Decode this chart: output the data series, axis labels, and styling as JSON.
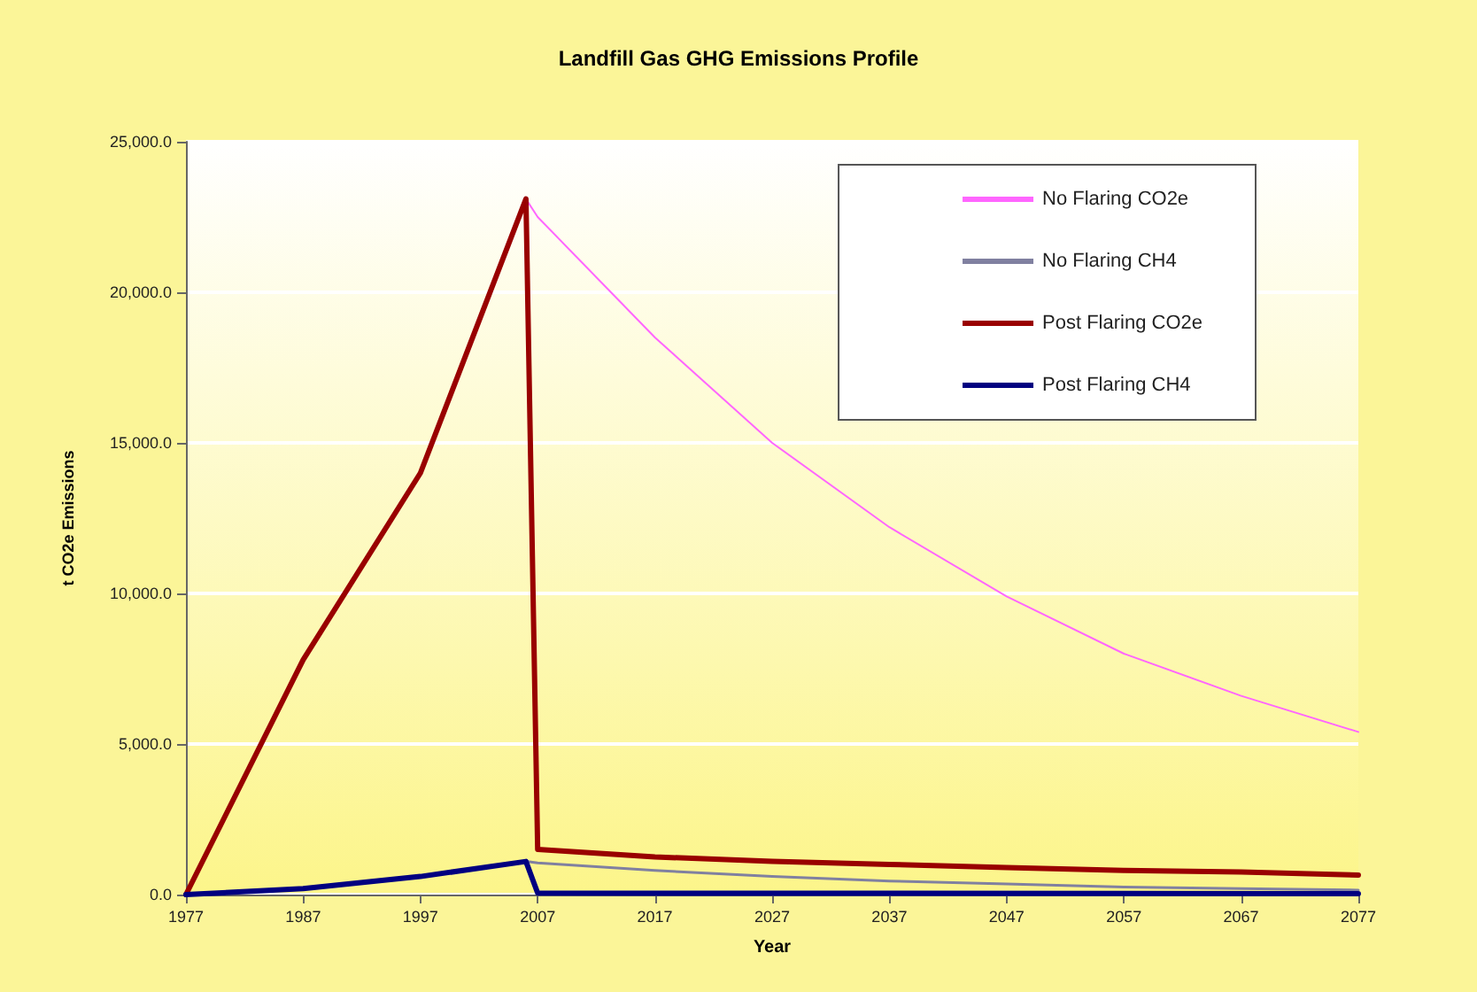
{
  "chart_data": {
    "type": "line",
    "title": "Landfill Gas GHG Emissions Profile",
    "xlabel": "Year",
    "ylabel": "t CO2e Emissions",
    "xlim": [
      1977,
      2077
    ],
    "xticks": [
      1977,
      1987,
      1997,
      2007,
      2017,
      2027,
      2037,
      2047,
      2057,
      2067,
      2077
    ],
    "ylim": [
      0,
      25000
    ],
    "yticks": [
      {
        "value": 0,
        "label": "0.0"
      },
      {
        "value": 5000,
        "label": "5,000.0"
      },
      {
        "value": 10000,
        "label": "10,000.0"
      },
      {
        "value": 15000,
        "label": "15,000.0"
      },
      {
        "value": 20000,
        "label": "20,000.0"
      },
      {
        "value": 25000,
        "label": "25,000.0"
      }
    ],
    "grid": "y",
    "legend": "top right",
    "marker": "none",
    "line_style": "solid",
    "series": [
      {
        "name": "No Flaring CO2e",
        "color": "#ff66ff",
        "x": [
          2006,
          2007,
          2017,
          2027,
          2037,
          2047,
          2057,
          2067,
          2077
        ],
        "values": [
          23100,
          22500,
          18500,
          15000,
          12200,
          9900,
          8000,
          6600,
          5400
        ]
      },
      {
        "name": "No Flaring CH4",
        "color": "#8080a0",
        "x": [
          2006,
          2007,
          2017,
          2027,
          2037,
          2047,
          2057,
          2067,
          2077
        ],
        "values": [
          1100,
          1050,
          800,
          600,
          450,
          350,
          250,
          200,
          150
        ]
      },
      {
        "name": "Post Flaring CO2e",
        "color": "#990000",
        "x": [
          1977,
          1987,
          1997,
          2006,
          2007,
          2017,
          2027,
          2037,
          2047,
          2057,
          2067,
          2077
        ],
        "values": [
          0,
          7800,
          14000,
          23100,
          1500,
          1250,
          1100,
          1000,
          900,
          800,
          750,
          650
        ]
      },
      {
        "name": "Post Flaring CH4",
        "color": "#000080",
        "x": [
          1977,
          1987,
          1997,
          2006,
          2007,
          2077
        ],
        "values": [
          0,
          200,
          600,
          1100,
          50,
          30
        ]
      }
    ]
  }
}
